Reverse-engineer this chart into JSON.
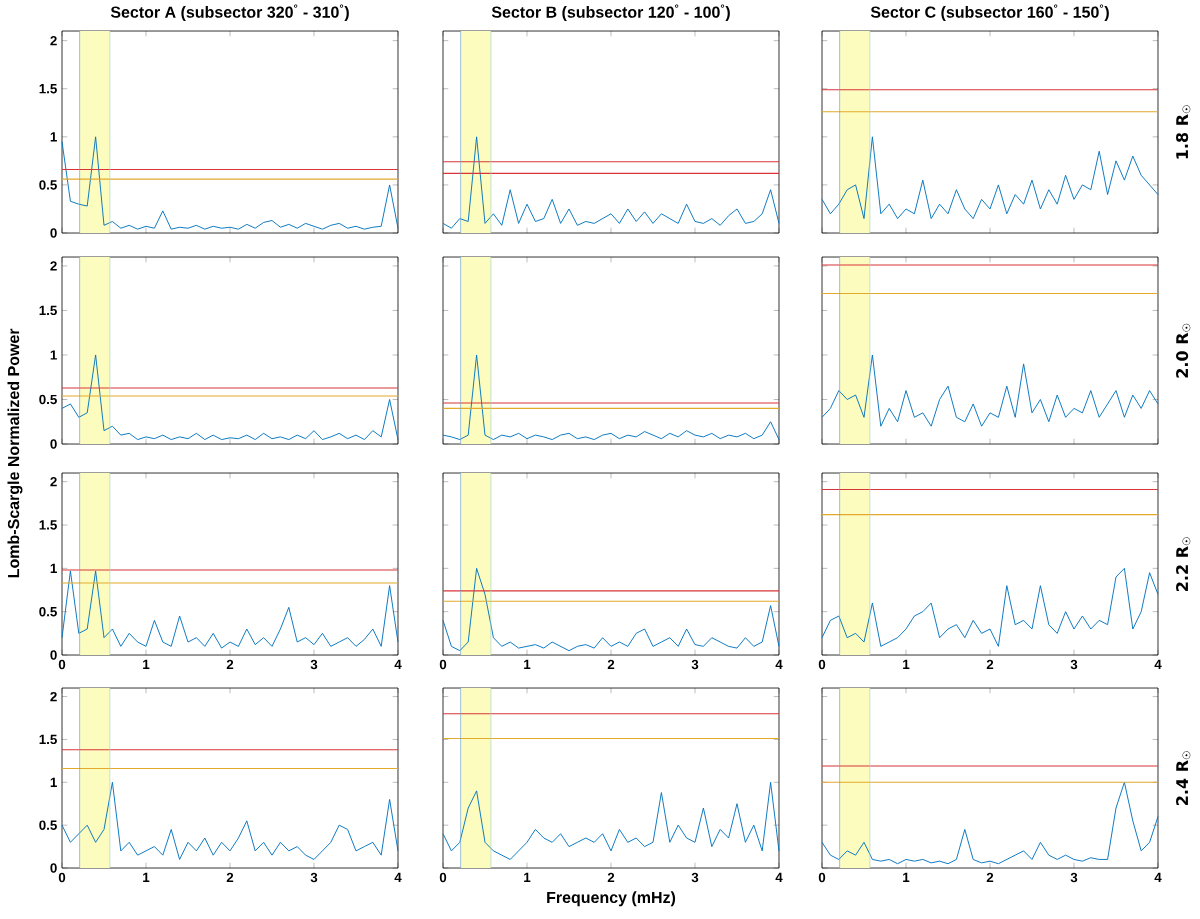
{
  "chart_data": [
    {
      "type": "line",
      "title": "Sector A (subsector 320$^{°}$ - 310$^{°}$)",
      "tick_labels": "y",
      "xlim": [
        0,
        4
      ],
      "ylim": [
        0,
        2.1
      ],
      "xticks": [
        0,
        1,
        2,
        3,
        4
      ],
      "yticks": [
        0,
        0.5,
        1,
        1.5,
        2
      ],
      "x": [
        0,
        0.1,
        0.2,
        0.3,
        0.4,
        0.5,
        0.6,
        0.7,
        0.8,
        0.9,
        1,
        1.1,
        1.2,
        1.3,
        1.4,
        1.5,
        1.6,
        1.7,
        1.8,
        1.9,
        2,
        2.1,
        2.2,
        2.3,
        2.4,
        2.5,
        2.6,
        2.7,
        2.8,
        2.9,
        3,
        3.1,
        3.2,
        3.3,
        3.4,
        3.5,
        3.6,
        3.7,
        3.8,
        3.9,
        4
      ],
      "series": [
        {
          "color": "#0072bd",
          "values": [
            0.95,
            0.33,
            0.3,
            0.28,
            1.0,
            0.08,
            0.12,
            0.05,
            0.08,
            0.04,
            0.07,
            0.05,
            0.23,
            0.04,
            0.06,
            0.05,
            0.08,
            0.04,
            0.07,
            0.05,
            0.06,
            0.04,
            0.09,
            0.05,
            0.11,
            0.13,
            0.06,
            0.09,
            0.05,
            0.1,
            0.07,
            0.04,
            0.08,
            0.1,
            0.05,
            0.07,
            0.04,
            0.06,
            0.07,
            0.5,
            0.05
          ]
        }
      ],
      "ref_lines": [
        {
          "axis": "y",
          "value": 0.66,
          "color": "#d9343a"
        },
        {
          "axis": "y",
          "value": 0.56,
          "color": "#e3a92b"
        },
        {
          "axis": "x",
          "value": 0.21,
          "color": "#6ea0d2"
        },
        {
          "axis": "x",
          "value": 0.57,
          "color": "#aad7c8"
        }
      ],
      "bands": [
        {
          "axis": "x",
          "from": 0.21,
          "to": 0.57,
          "color": "#fcfcbf"
        }
      ]
    },
    {
      "type": "line",
      "title": "Sector B (subsector 120$^{°}$ - 100$^{°}$)",
      "tick_labels": false,
      "xlim": [
        0,
        4
      ],
      "ylim": [
        0,
        2.1
      ],
      "xticks": [
        0,
        1,
        2,
        3,
        4
      ],
      "yticks": [
        0,
        0.5,
        1,
        1.5,
        2
      ],
      "x": [
        0,
        0.1,
        0.2,
        0.3,
        0.4,
        0.5,
        0.6,
        0.7,
        0.8,
        0.9,
        1,
        1.1,
        1.2,
        1.3,
        1.4,
        1.5,
        1.6,
        1.7,
        1.8,
        1.9,
        2,
        2.1,
        2.2,
        2.3,
        2.4,
        2.5,
        2.6,
        2.7,
        2.8,
        2.9,
        3,
        3.1,
        3.2,
        3.3,
        3.4,
        3.5,
        3.6,
        3.7,
        3.8,
        3.9,
        4
      ],
      "series": [
        {
          "color": "#0072bd",
          "values": [
            0.1,
            0.05,
            0.15,
            0.12,
            1.0,
            0.1,
            0.2,
            0.08,
            0.45,
            0.1,
            0.3,
            0.12,
            0.15,
            0.35,
            0.1,
            0.25,
            0.08,
            0.12,
            0.1,
            0.15,
            0.2,
            0.1,
            0.25,
            0.12,
            0.22,
            0.1,
            0.2,
            0.15,
            0.1,
            0.3,
            0.12,
            0.1,
            0.15,
            0.08,
            0.18,
            0.25,
            0.1,
            0.12,
            0.2,
            0.45,
            0.1
          ]
        }
      ],
      "ref_lines": [
        {
          "axis": "y",
          "value": 0.74,
          "color": "#d9343a"
        },
        {
          "axis": "y",
          "value": 0.62,
          "color": "#d9343a"
        },
        {
          "axis": "x",
          "value": 0.21,
          "color": "#6ea0d2"
        },
        {
          "axis": "x",
          "value": 0.57,
          "color": "#aad7c8"
        }
      ],
      "bands": [
        {
          "axis": "x",
          "from": 0.21,
          "to": 0.57,
          "color": "#fcfcbf"
        }
      ]
    },
    {
      "type": "line",
      "title": "Sector C (subsector 160$^{°}$ - 150$^{°}$)",
      "y2label": "1.8 R$_{☉}$",
      "tick_labels": false,
      "xlim": [
        0,
        4
      ],
      "ylim": [
        0,
        2.1
      ],
      "xticks": [
        0,
        1,
        2,
        3,
        4
      ],
      "yticks": [
        0,
        0.5,
        1,
        1.5,
        2
      ],
      "x": [
        0,
        0.1,
        0.2,
        0.3,
        0.4,
        0.5,
        0.6,
        0.7,
        0.8,
        0.9,
        1,
        1.1,
        1.2,
        1.3,
        1.4,
        1.5,
        1.6,
        1.7,
        1.8,
        1.9,
        2,
        2.1,
        2.2,
        2.3,
        2.4,
        2.5,
        2.6,
        2.7,
        2.8,
        2.9,
        3,
        3.1,
        3.2,
        3.3,
        3.4,
        3.5,
        3.6,
        3.7,
        3.8,
        3.9,
        4
      ],
      "series": [
        {
          "color": "#0072bd",
          "values": [
            0.35,
            0.2,
            0.3,
            0.45,
            0.5,
            0.15,
            1.0,
            0.2,
            0.3,
            0.15,
            0.25,
            0.2,
            0.55,
            0.15,
            0.3,
            0.2,
            0.45,
            0.25,
            0.15,
            0.35,
            0.25,
            0.5,
            0.2,
            0.4,
            0.3,
            0.55,
            0.25,
            0.45,
            0.3,
            0.6,
            0.35,
            0.5,
            0.45,
            0.85,
            0.4,
            0.75,
            0.55,
            0.8,
            0.6,
            0.5,
            0.4
          ]
        }
      ],
      "ref_lines": [
        {
          "axis": "y",
          "value": 1.49,
          "color": "#d9343a"
        },
        {
          "axis": "y",
          "value": 1.26,
          "color": "#e3a92b"
        },
        {
          "axis": "x",
          "value": 0.21,
          "color": "#6ea0d2"
        },
        {
          "axis": "x",
          "value": 0.57,
          "color": "#aad7c8"
        }
      ],
      "bands": [
        {
          "axis": "x",
          "from": 0.21,
          "to": 0.57,
          "color": "#fcfcbf"
        }
      ]
    },
    {
      "type": "line",
      "ylabel": "Lomb-Scargle Normalized Power",
      "tick_labels": "y",
      "xlim": [
        0,
        4
      ],
      "ylim": [
        0,
        2.1
      ],
      "xticks": [
        0,
        1,
        2,
        3,
        4
      ],
      "yticks": [
        0,
        0.5,
        1,
        1.5,
        2
      ],
      "x": [
        0,
        0.1,
        0.2,
        0.3,
        0.4,
        0.5,
        0.6,
        0.7,
        0.8,
        0.9,
        1,
        1.1,
        1.2,
        1.3,
        1.4,
        1.5,
        1.6,
        1.7,
        1.8,
        1.9,
        2,
        2.1,
        2.2,
        2.3,
        2.4,
        2.5,
        2.6,
        2.7,
        2.8,
        2.9,
        3,
        3.1,
        3.2,
        3.3,
        3.4,
        3.5,
        3.6,
        3.7,
        3.8,
        3.9,
        4
      ],
      "series": [
        {
          "color": "#0072bd",
          "values": [
            0.4,
            0.45,
            0.3,
            0.35,
            1.0,
            0.15,
            0.2,
            0.1,
            0.12,
            0.05,
            0.08,
            0.06,
            0.1,
            0.05,
            0.08,
            0.06,
            0.12,
            0.05,
            0.1,
            0.05,
            0.07,
            0.06,
            0.1,
            0.05,
            0.12,
            0.06,
            0.08,
            0.05,
            0.1,
            0.06,
            0.15,
            0.05,
            0.08,
            0.12,
            0.06,
            0.1,
            0.05,
            0.15,
            0.08,
            0.5,
            0.05
          ]
        }
      ],
      "ref_lines": [
        {
          "axis": "y",
          "value": 0.63,
          "color": "#d9343a"
        },
        {
          "axis": "y",
          "value": 0.54,
          "color": "#e3a92b"
        },
        {
          "axis": "x",
          "value": 0.21,
          "color": "#6ea0d2"
        },
        {
          "axis": "x",
          "value": 0.57,
          "color": "#aad7c8"
        }
      ],
      "bands": [
        {
          "axis": "x",
          "from": 0.21,
          "to": 0.57,
          "color": "#fcfcbf"
        }
      ]
    },
    {
      "type": "line",
      "tick_labels": false,
      "xlim": [
        0,
        4
      ],
      "ylim": [
        0,
        2.1
      ],
      "xticks": [
        0,
        1,
        2,
        3,
        4
      ],
      "yticks": [
        0,
        0.5,
        1,
        1.5,
        2
      ],
      "x": [
        0,
        0.1,
        0.2,
        0.3,
        0.4,
        0.5,
        0.6,
        0.7,
        0.8,
        0.9,
        1,
        1.1,
        1.2,
        1.3,
        1.4,
        1.5,
        1.6,
        1.7,
        1.8,
        1.9,
        2,
        2.1,
        2.2,
        2.3,
        2.4,
        2.5,
        2.6,
        2.7,
        2.8,
        2.9,
        3,
        3.1,
        3.2,
        3.3,
        3.4,
        3.5,
        3.6,
        3.7,
        3.8,
        3.9,
        4
      ],
      "series": [
        {
          "color": "#0072bd",
          "values": [
            0.1,
            0.08,
            0.05,
            0.1,
            1.0,
            0.1,
            0.05,
            0.1,
            0.08,
            0.12,
            0.06,
            0.1,
            0.08,
            0.05,
            0.1,
            0.12,
            0.06,
            0.08,
            0.05,
            0.1,
            0.12,
            0.06,
            0.1,
            0.08,
            0.14,
            0.1,
            0.06,
            0.12,
            0.08,
            0.15,
            0.1,
            0.08,
            0.12,
            0.06,
            0.1,
            0.08,
            0.12,
            0.06,
            0.1,
            0.25,
            0.05
          ]
        }
      ],
      "ref_lines": [
        {
          "axis": "y",
          "value": 0.46,
          "color": "#d9343a"
        },
        {
          "axis": "y",
          "value": 0.4,
          "color": "#e3a92b"
        },
        {
          "axis": "x",
          "value": 0.21,
          "color": "#6ea0d2"
        },
        {
          "axis": "x",
          "value": 0.57,
          "color": "#aad7c8"
        }
      ],
      "bands": [
        {
          "axis": "x",
          "from": 0.21,
          "to": 0.57,
          "color": "#fcfcbf"
        }
      ]
    },
    {
      "type": "line",
      "y2label": "2.0 R$_{☉}$",
      "tick_labels": false,
      "xlim": [
        0,
        4
      ],
      "ylim": [
        0,
        2.1
      ],
      "xticks": [
        0,
        1,
        2,
        3,
        4
      ],
      "yticks": [
        0,
        0.5,
        1,
        1.5,
        2
      ],
      "x": [
        0,
        0.1,
        0.2,
        0.3,
        0.4,
        0.5,
        0.6,
        0.7,
        0.8,
        0.9,
        1,
        1.1,
        1.2,
        1.3,
        1.4,
        1.5,
        1.6,
        1.7,
        1.8,
        1.9,
        2,
        2.1,
        2.2,
        2.3,
        2.4,
        2.5,
        2.6,
        2.7,
        2.8,
        2.9,
        3,
        3.1,
        3.2,
        3.3,
        3.4,
        3.5,
        3.6,
        3.7,
        3.8,
        3.9,
        4
      ],
      "series": [
        {
          "color": "#0072bd",
          "values": [
            0.3,
            0.4,
            0.6,
            0.5,
            0.55,
            0.3,
            1.0,
            0.2,
            0.4,
            0.25,
            0.6,
            0.3,
            0.35,
            0.2,
            0.5,
            0.65,
            0.3,
            0.25,
            0.45,
            0.2,
            0.35,
            0.3,
            0.65,
            0.3,
            0.9,
            0.35,
            0.5,
            0.25,
            0.55,
            0.3,
            0.4,
            0.35,
            0.6,
            0.3,
            0.45,
            0.6,
            0.3,
            0.55,
            0.4,
            0.6,
            0.45
          ]
        }
      ],
      "ref_lines": [
        {
          "axis": "y",
          "value": 2.01,
          "color": "#d9343a"
        },
        {
          "axis": "y",
          "value": 1.69,
          "color": "#e3a92b"
        },
        {
          "axis": "x",
          "value": 0.21,
          "color": "#6ea0d2"
        },
        {
          "axis": "x",
          "value": 0.57,
          "color": "#aad7c8"
        }
      ],
      "bands": [
        {
          "axis": "x",
          "from": 0.21,
          "to": 0.57,
          "color": "#fcfcbf"
        }
      ]
    },
    {
      "type": "line",
      "xlim": [
        0,
        4
      ],
      "ylim": [
        0,
        2.1
      ],
      "xticks": [
        0,
        1,
        2,
        3,
        4
      ],
      "yticks": [
        0,
        0.5,
        1,
        1.5,
        2
      ],
      "x": [
        0,
        0.1,
        0.2,
        0.3,
        0.4,
        0.5,
        0.6,
        0.7,
        0.8,
        0.9,
        1,
        1.1,
        1.2,
        1.3,
        1.4,
        1.5,
        1.6,
        1.7,
        1.8,
        1.9,
        2,
        2.1,
        2.2,
        2.3,
        2.4,
        2.5,
        2.6,
        2.7,
        2.8,
        2.9,
        3,
        3.1,
        3.2,
        3.3,
        3.4,
        3.5,
        3.6,
        3.7,
        3.8,
        3.9,
        4
      ],
      "series": [
        {
          "color": "#0072bd",
          "values": [
            0.2,
            0.97,
            0.25,
            0.3,
            0.97,
            0.2,
            0.3,
            0.1,
            0.25,
            0.15,
            0.1,
            0.4,
            0.15,
            0.1,
            0.45,
            0.15,
            0.2,
            0.1,
            0.25,
            0.08,
            0.15,
            0.1,
            0.3,
            0.12,
            0.2,
            0.1,
            0.3,
            0.55,
            0.15,
            0.2,
            0.12,
            0.25,
            0.1,
            0.15,
            0.2,
            0.1,
            0.18,
            0.3,
            0.1,
            0.8,
            0.15
          ]
        }
      ],
      "ref_lines": [
        {
          "axis": "y",
          "value": 0.98,
          "color": "#d9343a"
        },
        {
          "axis": "y",
          "value": 0.83,
          "color": "#e3a92b"
        },
        {
          "axis": "x",
          "value": 0.21,
          "color": "#6ea0d2"
        },
        {
          "axis": "x",
          "value": 0.57,
          "color": "#aad7c8"
        }
      ],
      "bands": [
        {
          "axis": "x",
          "from": 0.21,
          "to": 0.57,
          "color": "#fcfcbf"
        }
      ]
    },
    {
      "type": "line",
      "tick_labels": "x",
      "xlim": [
        0,
        4
      ],
      "ylim": [
        0,
        2.1
      ],
      "xticks": [
        0,
        1,
        2,
        3,
        4
      ],
      "yticks": [
        0,
        0.5,
        1,
        1.5,
        2
      ],
      "x": [
        0,
        0.1,
        0.2,
        0.3,
        0.4,
        0.5,
        0.6,
        0.7,
        0.8,
        0.9,
        1,
        1.1,
        1.2,
        1.3,
        1.4,
        1.5,
        1.6,
        1.7,
        1.8,
        1.9,
        2,
        2.1,
        2.2,
        2.3,
        2.4,
        2.5,
        2.6,
        2.7,
        2.8,
        2.9,
        3,
        3.1,
        3.2,
        3.3,
        3.4,
        3.5,
        3.6,
        3.7,
        3.8,
        3.9,
        4
      ],
      "series": [
        {
          "color": "#0072bd",
          "values": [
            0.4,
            0.1,
            0.05,
            0.15,
            1.0,
            0.7,
            0.2,
            0.1,
            0.15,
            0.08,
            0.1,
            0.12,
            0.08,
            0.15,
            0.1,
            0.05,
            0.1,
            0.12,
            0.08,
            0.2,
            0.1,
            0.15,
            0.1,
            0.25,
            0.3,
            0.1,
            0.15,
            0.2,
            0.1,
            0.3,
            0.12,
            0.1,
            0.2,
            0.15,
            0.1,
            0.08,
            0.2,
            0.1,
            0.15,
            0.57,
            0.1
          ]
        }
      ],
      "ref_lines": [
        {
          "axis": "y",
          "value": 0.74,
          "color": "#d9343a"
        },
        {
          "axis": "y",
          "value": 0.62,
          "color": "#e3a92b"
        },
        {
          "axis": "x",
          "value": 0.21,
          "color": "#6ea0d2"
        },
        {
          "axis": "x",
          "value": 0.57,
          "color": "#aad7c8"
        }
      ],
      "bands": [
        {
          "axis": "x",
          "from": 0.21,
          "to": 0.57,
          "color": "#fcfcbf"
        }
      ]
    },
    {
      "type": "line",
      "y2label": "2.2 R$_{☉}$",
      "tick_labels": "x",
      "xlim": [
        0,
        4
      ],
      "ylim": [
        0,
        2.1
      ],
      "xticks": [
        0,
        1,
        2,
        3,
        4
      ],
      "yticks": [
        0,
        0.5,
        1,
        1.5,
        2
      ],
      "x": [
        0,
        0.1,
        0.2,
        0.3,
        0.4,
        0.5,
        0.6,
        0.7,
        0.8,
        0.9,
        1,
        1.1,
        1.2,
        1.3,
        1.4,
        1.5,
        1.6,
        1.7,
        1.8,
        1.9,
        2,
        2.1,
        2.2,
        2.3,
        2.4,
        2.5,
        2.6,
        2.7,
        2.8,
        2.9,
        3,
        3.1,
        3.2,
        3.3,
        3.4,
        3.5,
        3.6,
        3.7,
        3.8,
        3.9,
        4
      ],
      "series": [
        {
          "color": "#0072bd",
          "values": [
            0.2,
            0.4,
            0.45,
            0.2,
            0.25,
            0.15,
            0.6,
            0.1,
            0.15,
            0.2,
            0.3,
            0.45,
            0.5,
            0.6,
            0.2,
            0.3,
            0.35,
            0.2,
            0.4,
            0.25,
            0.3,
            0.1,
            0.8,
            0.35,
            0.4,
            0.3,
            0.8,
            0.35,
            0.25,
            0.5,
            0.3,
            0.45,
            0.3,
            0.4,
            0.35,
            0.9,
            1.0,
            0.3,
            0.5,
            0.95,
            0.7
          ]
        }
      ],
      "ref_lines": [
        {
          "axis": "y",
          "value": 1.91,
          "color": "#d9343a"
        },
        {
          "axis": "y",
          "value": 1.62,
          "color": "#e3a92b"
        },
        {
          "axis": "x",
          "value": 0.21,
          "color": "#6ea0d2"
        },
        {
          "axis": "x",
          "value": 0.57,
          "color": "#aad7c8"
        }
      ],
      "bands": [
        {
          "axis": "x",
          "from": 0.21,
          "to": 0.57,
          "color": "#fcfcbf"
        }
      ]
    },
    {
      "type": "line",
      "xlim": [
        0,
        4
      ],
      "ylim": [
        0,
        2.1
      ],
      "xticks": [
        0,
        1,
        2,
        3,
        4
      ],
      "yticks": [
        0,
        0.5,
        1,
        1.5,
        2
      ],
      "x": [
        0,
        0.1,
        0.2,
        0.3,
        0.4,
        0.5,
        0.6,
        0.7,
        0.8,
        0.9,
        1,
        1.1,
        1.2,
        1.3,
        1.4,
        1.5,
        1.6,
        1.7,
        1.8,
        1.9,
        2,
        2.1,
        2.2,
        2.3,
        2.4,
        2.5,
        2.6,
        2.7,
        2.8,
        2.9,
        3,
        3.1,
        3.2,
        3.3,
        3.4,
        3.5,
        3.6,
        3.7,
        3.8,
        3.9,
        4
      ],
      "series": [
        {
          "color": "#0072bd",
          "values": [
            0.5,
            0.3,
            0.4,
            0.5,
            0.3,
            0.45,
            1.0,
            0.2,
            0.3,
            0.15,
            0.2,
            0.25,
            0.15,
            0.45,
            0.1,
            0.3,
            0.2,
            0.35,
            0.15,
            0.3,
            0.2,
            0.35,
            0.55,
            0.2,
            0.3,
            0.15,
            0.3,
            0.2,
            0.25,
            0.15,
            0.1,
            0.2,
            0.3,
            0.5,
            0.45,
            0.2,
            0.25,
            0.3,
            0.15,
            0.8,
            0.2
          ]
        }
      ],
      "ref_lines": [
        {
          "axis": "y",
          "value": 1.38,
          "color": "#d9343a"
        },
        {
          "axis": "y",
          "value": 1.16,
          "color": "#e3a92b"
        },
        {
          "axis": "x",
          "value": 0.21,
          "color": "#6ea0d2"
        },
        {
          "axis": "x",
          "value": 0.57,
          "color": "#aad7c8"
        }
      ],
      "bands": [
        {
          "axis": "x",
          "from": 0.21,
          "to": 0.57,
          "color": "#fcfcbf"
        }
      ]
    },
    {
      "type": "line",
      "xlabel": "Frequency (mHz)",
      "tick_labels": "x",
      "xlim": [
        0,
        4
      ],
      "ylim": [
        0,
        2.1
      ],
      "xticks": [
        0,
        1,
        2,
        3,
        4
      ],
      "yticks": [
        0,
        0.5,
        1,
        1.5,
        2
      ],
      "x": [
        0,
        0.1,
        0.2,
        0.3,
        0.4,
        0.5,
        0.6,
        0.7,
        0.8,
        0.9,
        1,
        1.1,
        1.2,
        1.3,
        1.4,
        1.5,
        1.6,
        1.7,
        1.8,
        1.9,
        2,
        2.1,
        2.2,
        2.3,
        2.4,
        2.5,
        2.6,
        2.7,
        2.8,
        2.9,
        3,
        3.1,
        3.2,
        3.3,
        3.4,
        3.5,
        3.6,
        3.7,
        3.8,
        3.9,
        4
      ],
      "series": [
        {
          "color": "#0072bd",
          "values": [
            0.4,
            0.2,
            0.3,
            0.7,
            0.9,
            0.3,
            0.2,
            0.15,
            0.1,
            0.2,
            0.3,
            0.45,
            0.35,
            0.3,
            0.4,
            0.25,
            0.3,
            0.35,
            0.3,
            0.4,
            0.2,
            0.45,
            0.3,
            0.35,
            0.25,
            0.3,
            0.88,
            0.3,
            0.5,
            0.35,
            0.3,
            0.7,
            0.25,
            0.45,
            0.35,
            0.75,
            0.3,
            0.5,
            0.2,
            1.0,
            0.2
          ]
        }
      ],
      "ref_lines": [
        {
          "axis": "y",
          "value": 1.8,
          "color": "#d9343a"
        },
        {
          "axis": "y",
          "value": 1.51,
          "color": "#e3a92b"
        },
        {
          "axis": "x",
          "value": 0.21,
          "color": "#6ea0d2"
        },
        {
          "axis": "x",
          "value": 0.57,
          "color": "#aad7c8"
        }
      ],
      "bands": [
        {
          "axis": "x",
          "from": 0.21,
          "to": 0.57,
          "color": "#fcfcbf"
        }
      ]
    },
    {
      "type": "line",
      "y2label": "2.4 R$_{☉}$",
      "tick_labels": "x",
      "xlim": [
        0,
        4
      ],
      "ylim": [
        0,
        2.1
      ],
      "xticks": [
        0,
        1,
        2,
        3,
        4
      ],
      "yticks": [
        0,
        0.5,
        1,
        1.5,
        2
      ],
      "x": [
        0,
        0.1,
        0.2,
        0.3,
        0.4,
        0.5,
        0.6,
        0.7,
        0.8,
        0.9,
        1,
        1.1,
        1.2,
        1.3,
        1.4,
        1.5,
        1.6,
        1.7,
        1.8,
        1.9,
        2,
        2.1,
        2.2,
        2.3,
        2.4,
        2.5,
        2.6,
        2.7,
        2.8,
        2.9,
        3,
        3.1,
        3.2,
        3.3,
        3.4,
        3.5,
        3.6,
        3.7,
        3.8,
        3.9,
        4
      ],
      "series": [
        {
          "color": "#0072bd",
          "values": [
            0.3,
            0.15,
            0.1,
            0.2,
            0.15,
            0.3,
            0.1,
            0.08,
            0.1,
            0.05,
            0.1,
            0.08,
            0.1,
            0.06,
            0.08,
            0.05,
            0.1,
            0.45,
            0.1,
            0.06,
            0.08,
            0.05,
            0.1,
            0.15,
            0.2,
            0.1,
            0.3,
            0.15,
            0.1,
            0.15,
            0.1,
            0.08,
            0.12,
            0.1,
            0.1,
            0.7,
            1.0,
            0.55,
            0.2,
            0.3,
            0.6
          ]
        }
      ],
      "ref_lines": [
        {
          "axis": "y",
          "value": 1.19,
          "color": "#d9343a"
        },
        {
          "axis": "y",
          "value": 1.0,
          "color": "#e3a92b"
        },
        {
          "axis": "x",
          "value": 0.21,
          "color": "#6ea0d2"
        },
        {
          "axis": "x",
          "value": 0.57,
          "color": "#aad7c8"
        }
      ],
      "bands": [
        {
          "axis": "x",
          "from": 0.21,
          "to": 0.57,
          "color": "#fcfcbf"
        }
      ]
    }
  ]
}
